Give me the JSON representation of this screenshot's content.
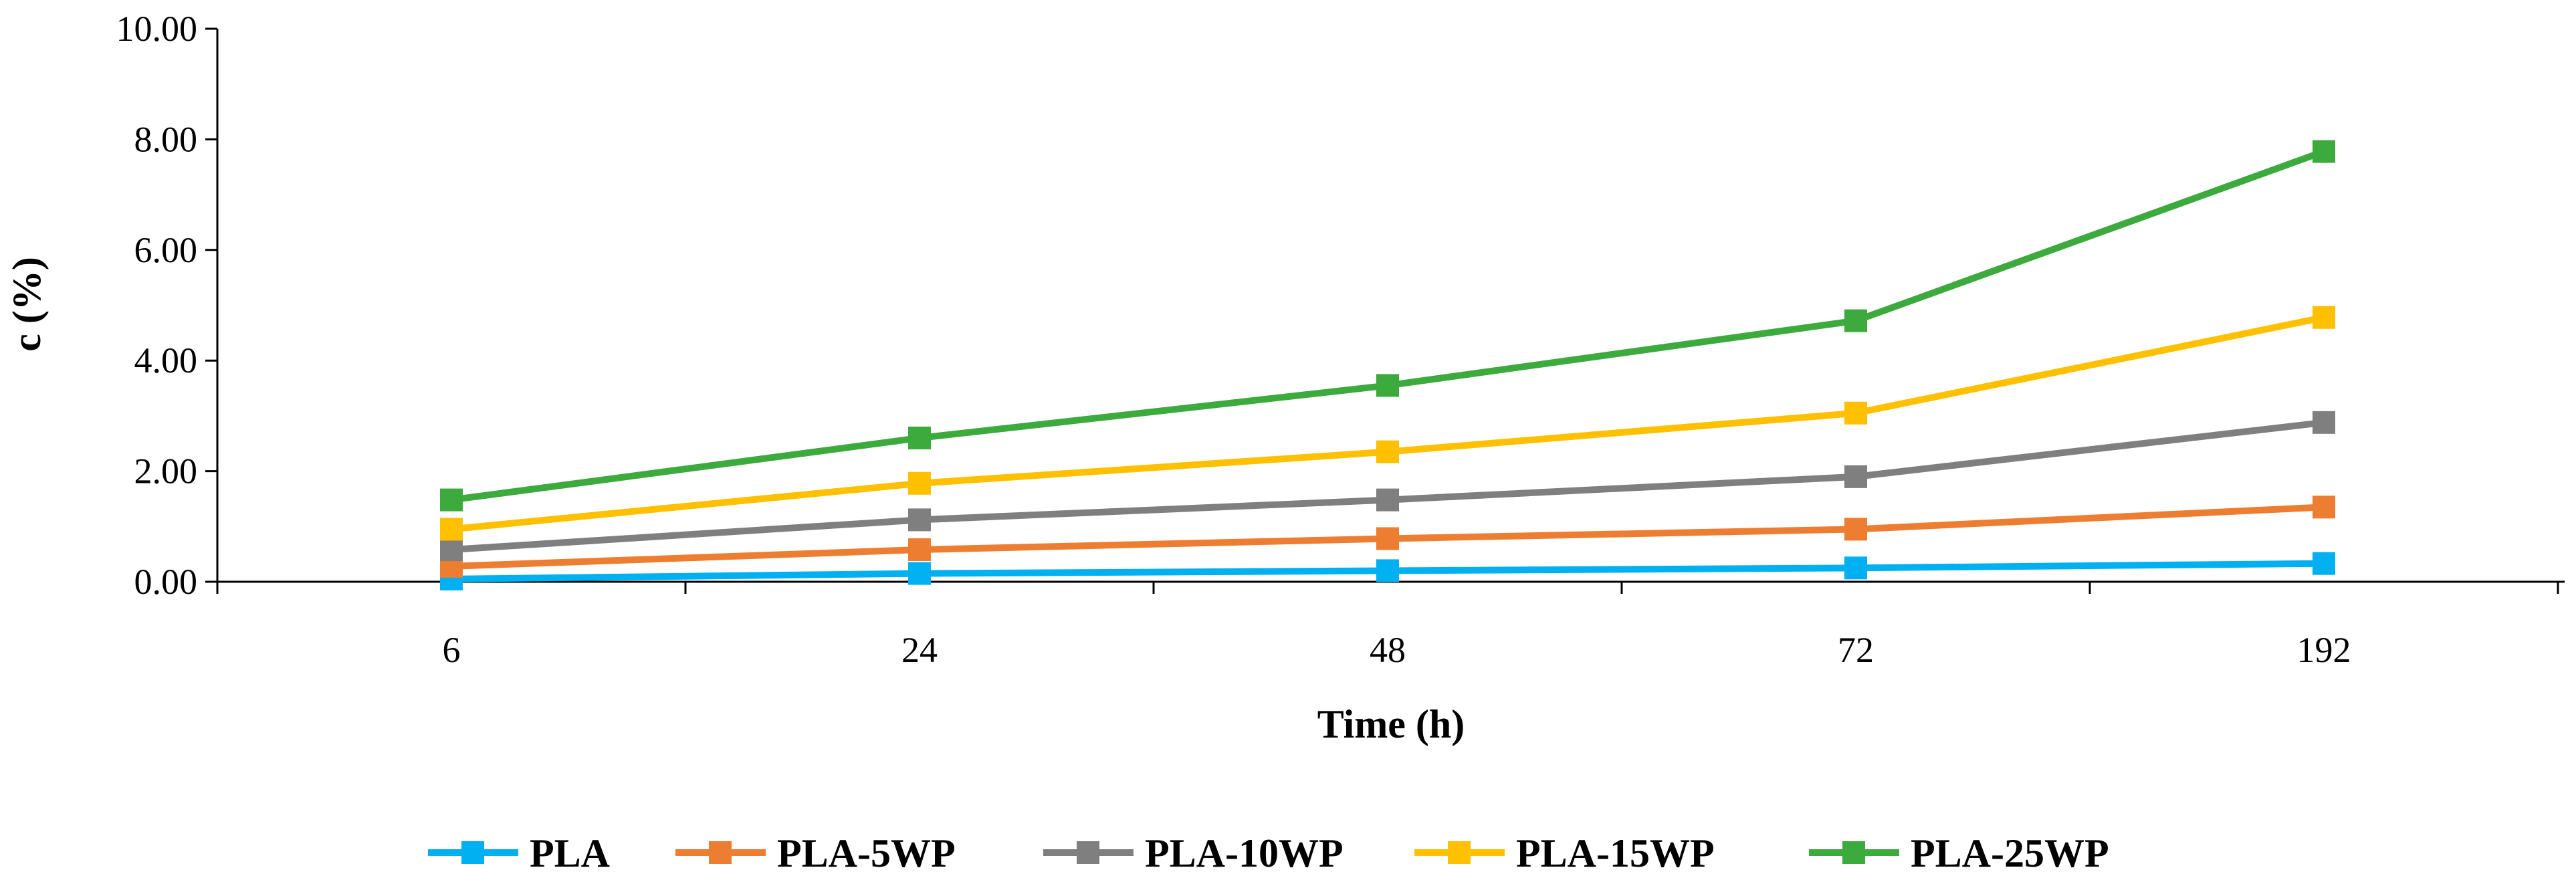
{
  "chart_data": {
    "type": "line",
    "title": "",
    "xlabel": "Time (h)",
    "ylabel": "c (%)",
    "categories": [
      "6",
      "24",
      "48",
      "72",
      "192"
    ],
    "ylim": [
      0,
      10
    ],
    "yticks": [
      "0.00",
      "2.00",
      "4.00",
      "6.00",
      "8.00",
      "10.00"
    ],
    "grid": false,
    "legend_position": "bottom",
    "marker": "square",
    "series": [
      {
        "name": "PLA",
        "color": "#00B0F0",
        "values": [
          0.05,
          0.15,
          0.2,
          0.25,
          0.33
        ]
      },
      {
        "name": "PLA-5WP",
        "color": "#ED7D31",
        "values": [
          0.28,
          0.58,
          0.78,
          0.95,
          1.35
        ]
      },
      {
        "name": "PLA-10WP",
        "color": "#7F7F7F",
        "values": [
          0.58,
          1.12,
          1.48,
          1.9,
          2.88
        ]
      },
      {
        "name": "PLA-15WP",
        "color": "#FFC000",
        "values": [
          0.95,
          1.78,
          2.35,
          3.05,
          4.78
        ]
      },
      {
        "name": "PLA-25WP",
        "color": "#3DAA3D",
        "values": [
          1.48,
          2.6,
          3.55,
          4.72,
          7.78
        ]
      }
    ]
  }
}
